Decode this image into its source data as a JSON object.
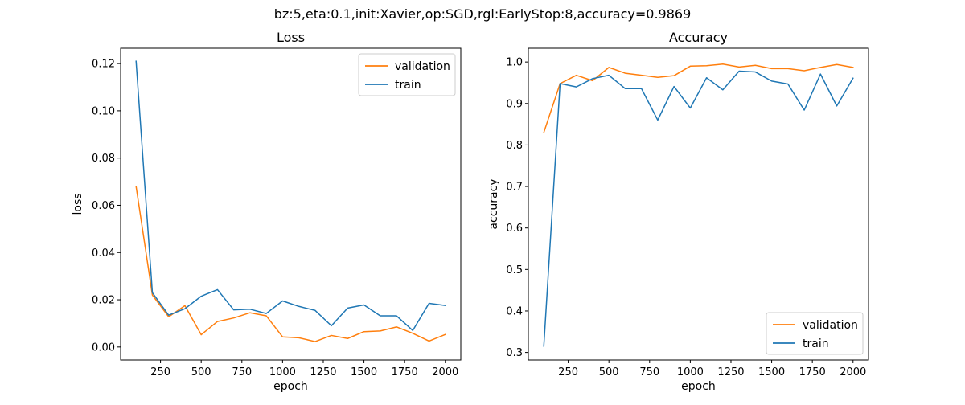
{
  "figure": {
    "title": "bz:5,eta:0.1,init:Xavier,op:SGD,rgl:EarlyStop:8,accuracy=0.9869"
  },
  "colors": {
    "validation": "#ff7f0e",
    "train": "#1f77b4"
  },
  "chart_data": [
    {
      "type": "line",
      "title": "Loss",
      "xlabel": "epoch",
      "ylabel": "loss",
      "xlim": [
        5,
        2095
      ],
      "ylim": [
        -0.0055,
        0.1265
      ],
      "xticks": [
        250,
        500,
        750,
        1000,
        1250,
        1500,
        1750,
        2000
      ],
      "xtick_labels": [
        "250",
        "500",
        "750",
        "1000",
        "1250",
        "1500",
        "1750",
        "2000"
      ],
      "yticks": [
        0.0,
        0.02,
        0.04,
        0.06,
        0.08,
        0.1,
        0.12
      ],
      "ytick_labels": [
        "0.00",
        "0.02",
        "0.04",
        "0.06",
        "0.08",
        "0.10",
        "0.12"
      ],
      "legend_position": "top-right",
      "grid": false,
      "x": [
        100,
        200,
        300,
        400,
        500,
        600,
        700,
        800,
        900,
        1000,
        1100,
        1200,
        1300,
        1400,
        1500,
        1600,
        1700,
        1800,
        1900,
        2000
      ],
      "series": [
        {
          "name": "validation",
          "color": "#ff7f0e",
          "values": [
            0.068,
            0.022,
            0.0128,
            0.0175,
            0.0052,
            0.0108,
            0.0123,
            0.0145,
            0.0132,
            0.0043,
            0.0039,
            0.0023,
            0.0049,
            0.0036,
            0.0065,
            0.0068,
            0.0085,
            0.0058,
            0.0025,
            0.0053
          ]
        },
        {
          "name": "train",
          "color": "#1f77b4",
          "values": [
            0.121,
            0.023,
            0.0135,
            0.0162,
            0.0215,
            0.0243,
            0.0157,
            0.016,
            0.0142,
            0.0195,
            0.0172,
            0.0155,
            0.009,
            0.0165,
            0.0178,
            0.0132,
            0.0132,
            0.007,
            0.0185,
            0.0176
          ]
        }
      ]
    },
    {
      "type": "line",
      "title": "Accuracy",
      "xlabel": "epoch",
      "ylabel": "accuracy",
      "xlim": [
        5,
        2095
      ],
      "ylim": [
        0.2818,
        1.0332
      ],
      "xticks": [
        250,
        500,
        750,
        1000,
        1250,
        1500,
        1750,
        2000
      ],
      "xtick_labels": [
        "250",
        "500",
        "750",
        "1000",
        "1250",
        "1500",
        "1750",
        "2000"
      ],
      "yticks": [
        0.3,
        0.4,
        0.5,
        0.6,
        0.7,
        0.8,
        0.9,
        1.0
      ],
      "ytick_labels": [
        "0.3",
        "0.4",
        "0.5",
        "0.6",
        "0.7",
        "0.8",
        "0.9",
        "1.0"
      ],
      "legend_position": "bottom-right",
      "grid": false,
      "x": [
        100,
        200,
        300,
        400,
        500,
        600,
        700,
        800,
        900,
        1000,
        1100,
        1200,
        1300,
        1400,
        1500,
        1600,
        1700,
        1800,
        1900,
        2000
      ],
      "series": [
        {
          "name": "validation",
          "color": "#ff7f0e",
          "values": [
            0.83,
            0.948,
            0.968,
            0.955,
            0.987,
            0.973,
            0.968,
            0.963,
            0.967,
            0.99,
            0.991,
            0.995,
            0.988,
            0.992,
            0.984,
            0.984,
            0.979,
            0.987,
            0.994,
            0.987
          ]
        },
        {
          "name": "train",
          "color": "#1f77b4",
          "values": [
            0.315,
            0.948,
            0.94,
            0.96,
            0.968,
            0.936,
            0.936,
            0.86,
            0.941,
            0.889,
            0.962,
            0.933,
            0.978,
            0.976,
            0.954,
            0.947,
            0.884,
            0.971,
            0.894,
            0.961
          ]
        }
      ]
    }
  ]
}
